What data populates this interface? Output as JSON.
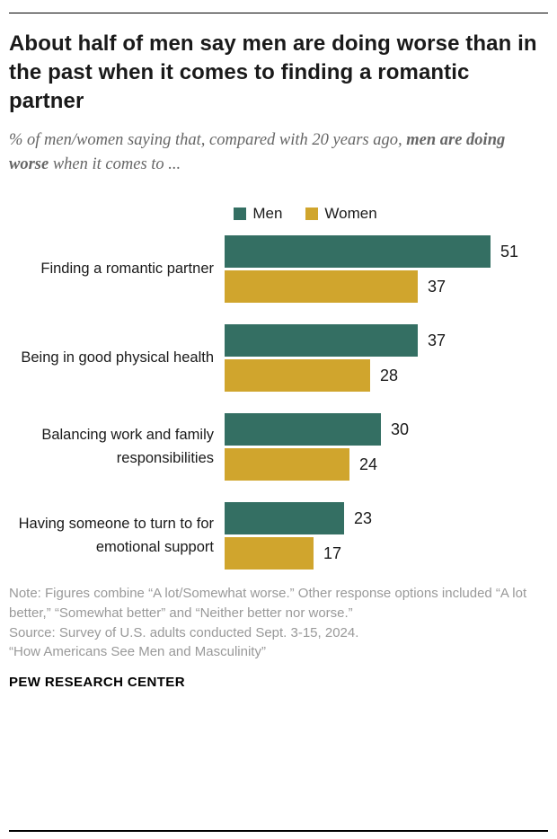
{
  "page": {
    "title": "About half of men say men are doing worse than in the past when it comes to finding a romantic partner",
    "subtitle_prefix": "% of men/women saying that, compared with 20 years ago, ",
    "subtitle_bold": "men are doing worse",
    "subtitle_suffix": " when it comes to ...",
    "note": "Note: Figures combine “A lot/Somewhat worse.” Other response options included “A lot better,” “Somewhat better” and “Neither better nor worse.”",
    "source_line1": "Source: Survey of U.S. adults conducted Sept. 3-15, 2024.",
    "source_line2": "“How Americans See Men and Masculinity”",
    "footer": "PEW RESEARCH CENTER"
  },
  "chart_data": {
    "type": "bar",
    "orientation": "horizontal",
    "title": "",
    "categories": [
      "Finding a romantic partner",
      "Being in good physical health",
      "Balancing work and family responsibilities",
      "Having someone to turn to for emotional support"
    ],
    "series": [
      {
        "name": "Men",
        "color": "#346f63",
        "values": [
          51,
          37,
          30,
          23
        ]
      },
      {
        "name": "Women",
        "color": "#d0a52d",
        "values": [
          37,
          28,
          24,
          17
        ]
      }
    ],
    "xlim": [
      0,
      60
    ],
    "grid": false,
    "legend_position": "top",
    "value_labels": true
  }
}
